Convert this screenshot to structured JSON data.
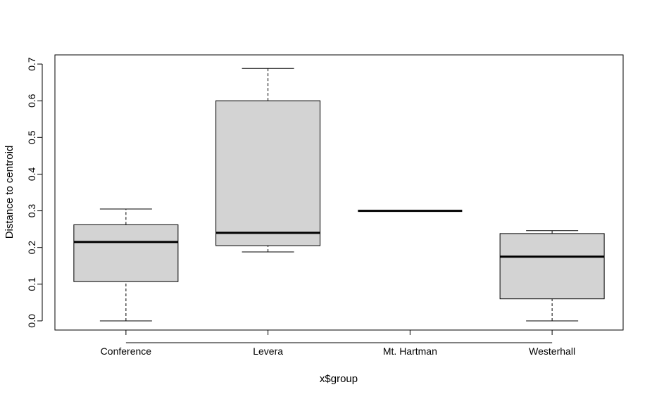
{
  "chart_data": {
    "type": "boxplot",
    "title": "",
    "xlabel": "x$group",
    "ylabel": "Distance to centroid",
    "ylim": [
      -0.025,
      0.725
    ],
    "yticks": [
      0.0,
      0.1,
      0.2,
      0.3,
      0.4,
      0.5,
      0.6,
      0.7
    ],
    "ytick_labels": [
      "0.0",
      "0.1",
      "0.2",
      "0.3",
      "0.4",
      "0.5",
      "0.6",
      "0.7"
    ],
    "grid": false,
    "box_fill": "#d3d3d3",
    "categories": [
      "Conference",
      "Levera",
      "Mt. Hartman",
      "Westerhall"
    ],
    "boxes": [
      {
        "category": "Conference",
        "whisker_low": 0.0,
        "q1": 0.107,
        "median": 0.215,
        "q3": 0.262,
        "whisker_high": 0.305
      },
      {
        "category": "Levera",
        "whisker_low": 0.188,
        "q1": 0.205,
        "median": 0.24,
        "q3": 0.6,
        "whisker_high": 0.688
      },
      {
        "category": "Mt. Hartman",
        "whisker_low": 0.3,
        "q1": 0.3,
        "median": 0.3,
        "q3": 0.3,
        "whisker_high": 0.3
      },
      {
        "category": "Westerhall",
        "whisker_low": 0.0,
        "q1": 0.06,
        "median": 0.175,
        "q3": 0.238,
        "whisker_high": 0.246
      }
    ]
  }
}
